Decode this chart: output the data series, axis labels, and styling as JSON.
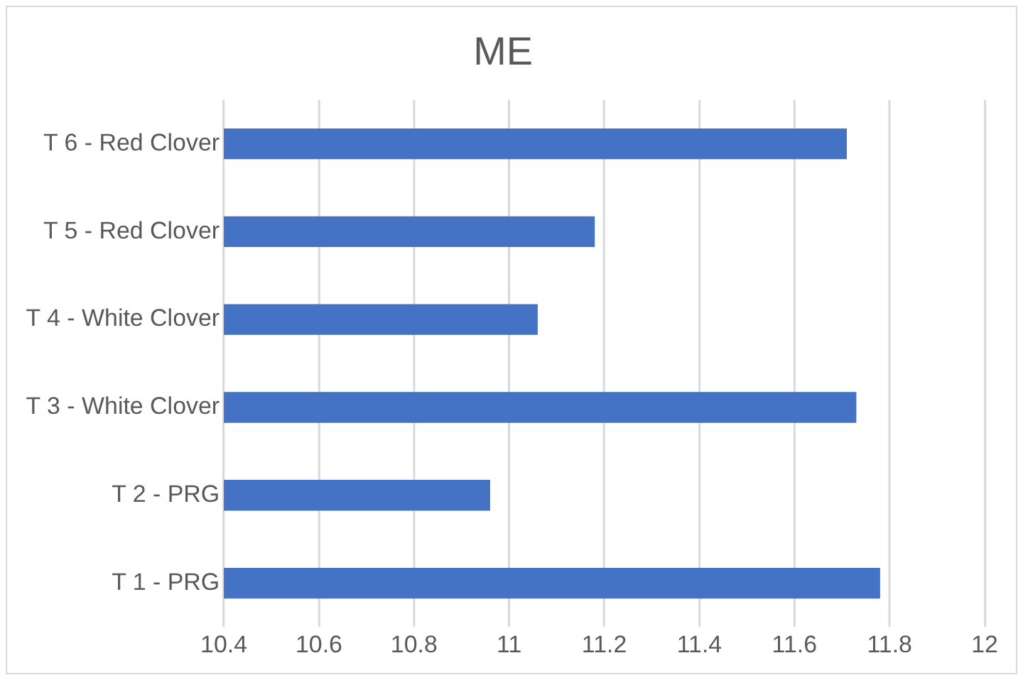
{
  "chart_data": {
    "type": "bar",
    "title": "ME",
    "orientation": "horizontal",
    "categories": [
      "T 6 - Red Clover",
      "T 5 - Red Clover",
      "T 4 - White Clover",
      "T 3 - White Clover",
      "T 2 - PRG",
      "T 1 - PRG"
    ],
    "values": [
      11.71,
      11.18,
      11.06,
      11.73,
      10.96,
      11.78
    ],
    "color": "#4472c4",
    "xlim": [
      10.4,
      12
    ],
    "xticks": [
      10.4,
      10.6,
      10.8,
      11,
      11.2,
      11.4,
      11.6,
      11.8,
      12
    ],
    "grid": "x",
    "legend": false
  }
}
